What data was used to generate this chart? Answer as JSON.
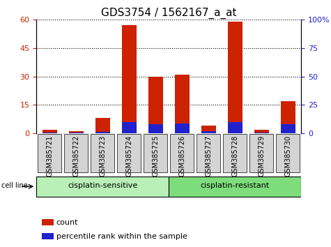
{
  "title": "GDS3754 / 1562167_a_at",
  "samples": [
    "GSM385721",
    "GSM385722",
    "GSM385723",
    "GSM385724",
    "GSM385725",
    "GSM385726",
    "GSM385727",
    "GSM385728",
    "GSM385729",
    "GSM385730"
  ],
  "count_values": [
    2.0,
    1.0,
    8.0,
    57.0,
    30.0,
    31.0,
    4.0,
    59.0,
    2.0,
    17.0
  ],
  "percentile_values": [
    1.0,
    0.6,
    1.2,
    10.0,
    8.0,
    8.5,
    2.0,
    10.0,
    0.5,
    8.0
  ],
  "bar_width": 0.55,
  "count_color": "#cc2200",
  "percentile_color": "#2222cc",
  "left_ylim": [
    0,
    60
  ],
  "right_ylim": [
    0,
    100
  ],
  "left_yticks": [
    0,
    15,
    30,
    45,
    60
  ],
  "right_yticks": [
    0,
    25,
    50,
    75,
    100
  ],
  "right_yticklabels": [
    "0",
    "25",
    "50",
    "75",
    "100%"
  ],
  "plot_bg_color": "#ffffff",
  "tick_label_color_left": "#cc2200",
  "tick_label_color_right": "#2222cc",
  "sample_box_color": "#d4d4d4",
  "sensitive_color": "#b8f0b8",
  "resistant_color": "#7ddd7d",
  "legend_items": [
    {
      "label": "count",
      "color": "#cc2200"
    },
    {
      "label": "percentile rank within the sample",
      "color": "#2222cc"
    }
  ],
  "title_fontsize": 11,
  "tick_fontsize": 8,
  "group_fontsize": 8,
  "legend_fontsize": 8
}
